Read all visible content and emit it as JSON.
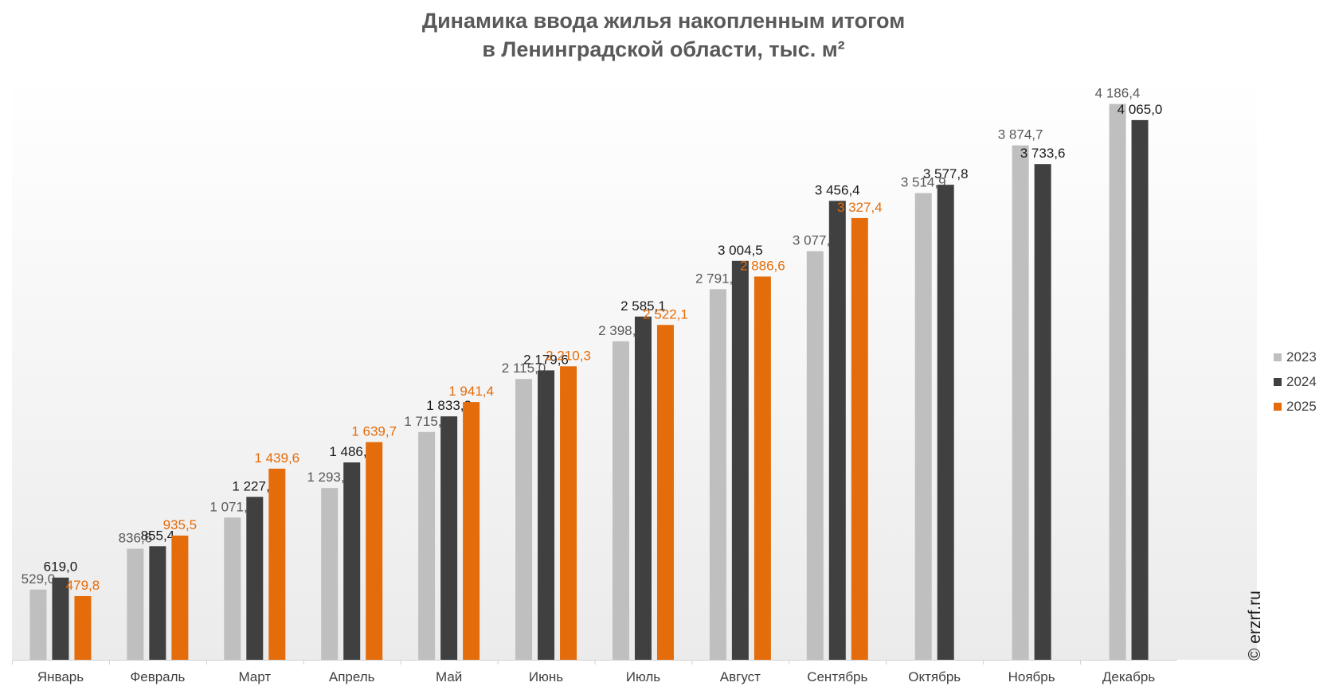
{
  "chart_data": {
    "type": "bar",
    "title_lines": [
      "Динамика ввода жилья накопленным итогом",
      "в Ленинградской области, тыс. м²"
    ],
    "categories": [
      "Январь",
      "Февраль",
      "Март",
      "Апрель",
      "Май",
      "Июнь",
      "Июль",
      "Август",
      "Сентябрь",
      "Октябрь",
      "Ноябрь",
      "Декабрь"
    ],
    "series": [
      {
        "name": "2023",
        "color": "#BFBFBF",
        "label_color": "#595959",
        "values": [
          529.0,
          836.6,
          1071.2,
          1293.8,
          1715.7,
          2115.0,
          2398.9,
          2791.3,
          3077.4,
          3514.9,
          3874.7,
          4186.4
        ],
        "labels": [
          "529,0",
          "836,6",
          "1 071,2",
          "1 293,8",
          "1 715,7",
          "2 115,0",
          "2 398,9",
          "2 791,3",
          "3 077,4",
          "3 514,9",
          "3 874,7",
          "4 186,4"
        ]
      },
      {
        "name": "2024",
        "color": "#404040",
        "label_color": "#1a1a1a",
        "values": [
          619.0,
          855.4,
          1227.2,
          1486.5,
          1833.3,
          2179.6,
          2585.1,
          3004.5,
          3456.4,
          3577.8,
          3733.6,
          4065.0
        ],
        "labels": [
          "619,0",
          "855,4",
          "1 227,2",
          "1 486,5",
          "1 833,3",
          "2 179,6",
          "2 585,1",
          "3 004,5",
          "3 456,4",
          "3 577,8",
          "3 733,6",
          "4 065,0"
        ]
      },
      {
        "name": "2025",
        "color": "#E46C0A",
        "label_color": "#E46C0A",
        "values": [
          479.8,
          935.5,
          1439.6,
          1639.7,
          1941.4,
          2210.3,
          2522.1,
          2886.6,
          3327.4,
          null,
          null,
          null
        ],
        "labels": [
          "479,8",
          "935,5",
          "1 439,6",
          "1 639,7",
          "1 941,4",
          "2 210,3",
          "2 522,1",
          "2 886,6",
          "3 327,4",
          "",
          "",
          ""
        ]
      }
    ],
    "ylim": [
      0,
      4400
    ],
    "grid": false,
    "legend": "right"
  },
  "watermark": "© erzrf.ru"
}
